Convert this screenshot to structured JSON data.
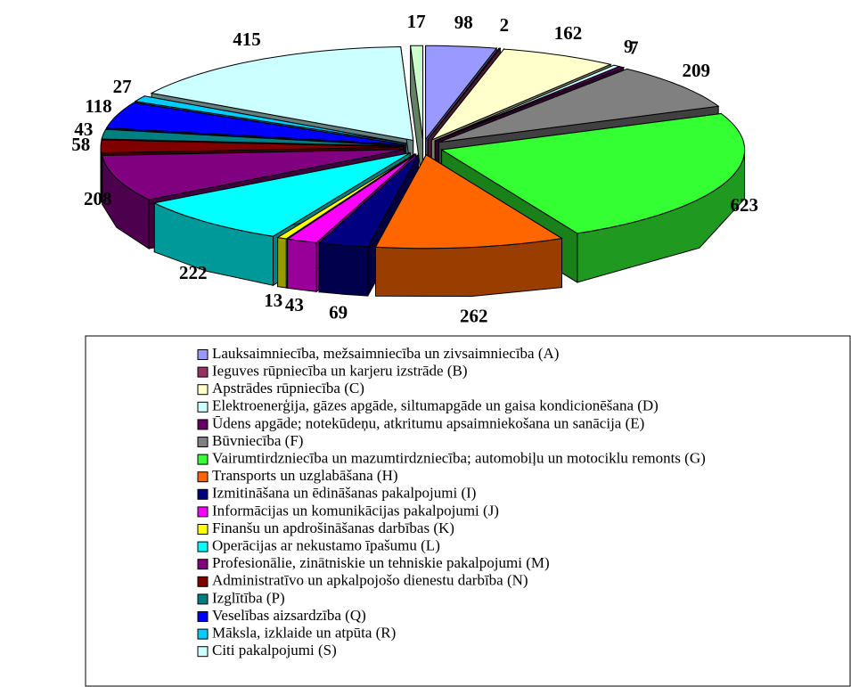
{
  "chart_data": {
    "type": "pie",
    "categories": [
      "Lauksaimniecība, mežsaimniecība un zivsaimniecība (A)",
      "Ieguves rūpniecība un karjeru izstrāde (B)",
      "Apstrādes rūpniecība (C)",
      "Elektroenerģija, gāzes apgāde, siltumapgāde un gaisa kondicionēšana (D)",
      "Ūdens apgāde; notekūdeņu, atkritumu apsaimniekošana un sanācija (E)",
      "Būvniecība (F)",
      "Vairumtirdzniecība un mazumtirdzniecība; automobiļu un motociklu remonts (G)",
      "Transports un uzglabāšana (H)",
      "Izmitināšana un ēdināšanas pakalpojumi (I)",
      "Informācijas un komunikācijas pakalpojumi (J)",
      "Finanšu un apdrošināšanas darbības (K)",
      "Operācijas ar nekustamo īpašumu (L)",
      "Profesionālie, zinātniskie un tehniskie pakalpojumi (M)",
      "Administratīvo un apkalpojošo dienestu darbība (N)",
      "Izglītība (P)",
      "Veselības aizsardzība (Q)",
      "Māksla, izklaide un atpūta (R)",
      "Citi pakalpojumi (S)",
      null
    ],
    "values": [
      98,
      2,
      162,
      9,
      7,
      209,
      623,
      262,
      69,
      43,
      13,
      222,
      208,
      58,
      43,
      118,
      27,
      415,
      17
    ],
    "colors": [
      "#9999ff",
      "#993366",
      "#ffffcc",
      "#ccffff",
      "#660066",
      "#808080",
      "#33ff33",
      "#ff6600",
      "#000080",
      "#ff00ff",
      "#ffff00",
      "#00ffff",
      "#800080",
      "#800000",
      "#008080",
      "#0000ff",
      "#00ccff",
      "#ccffff",
      "#ccffcc"
    ]
  }
}
